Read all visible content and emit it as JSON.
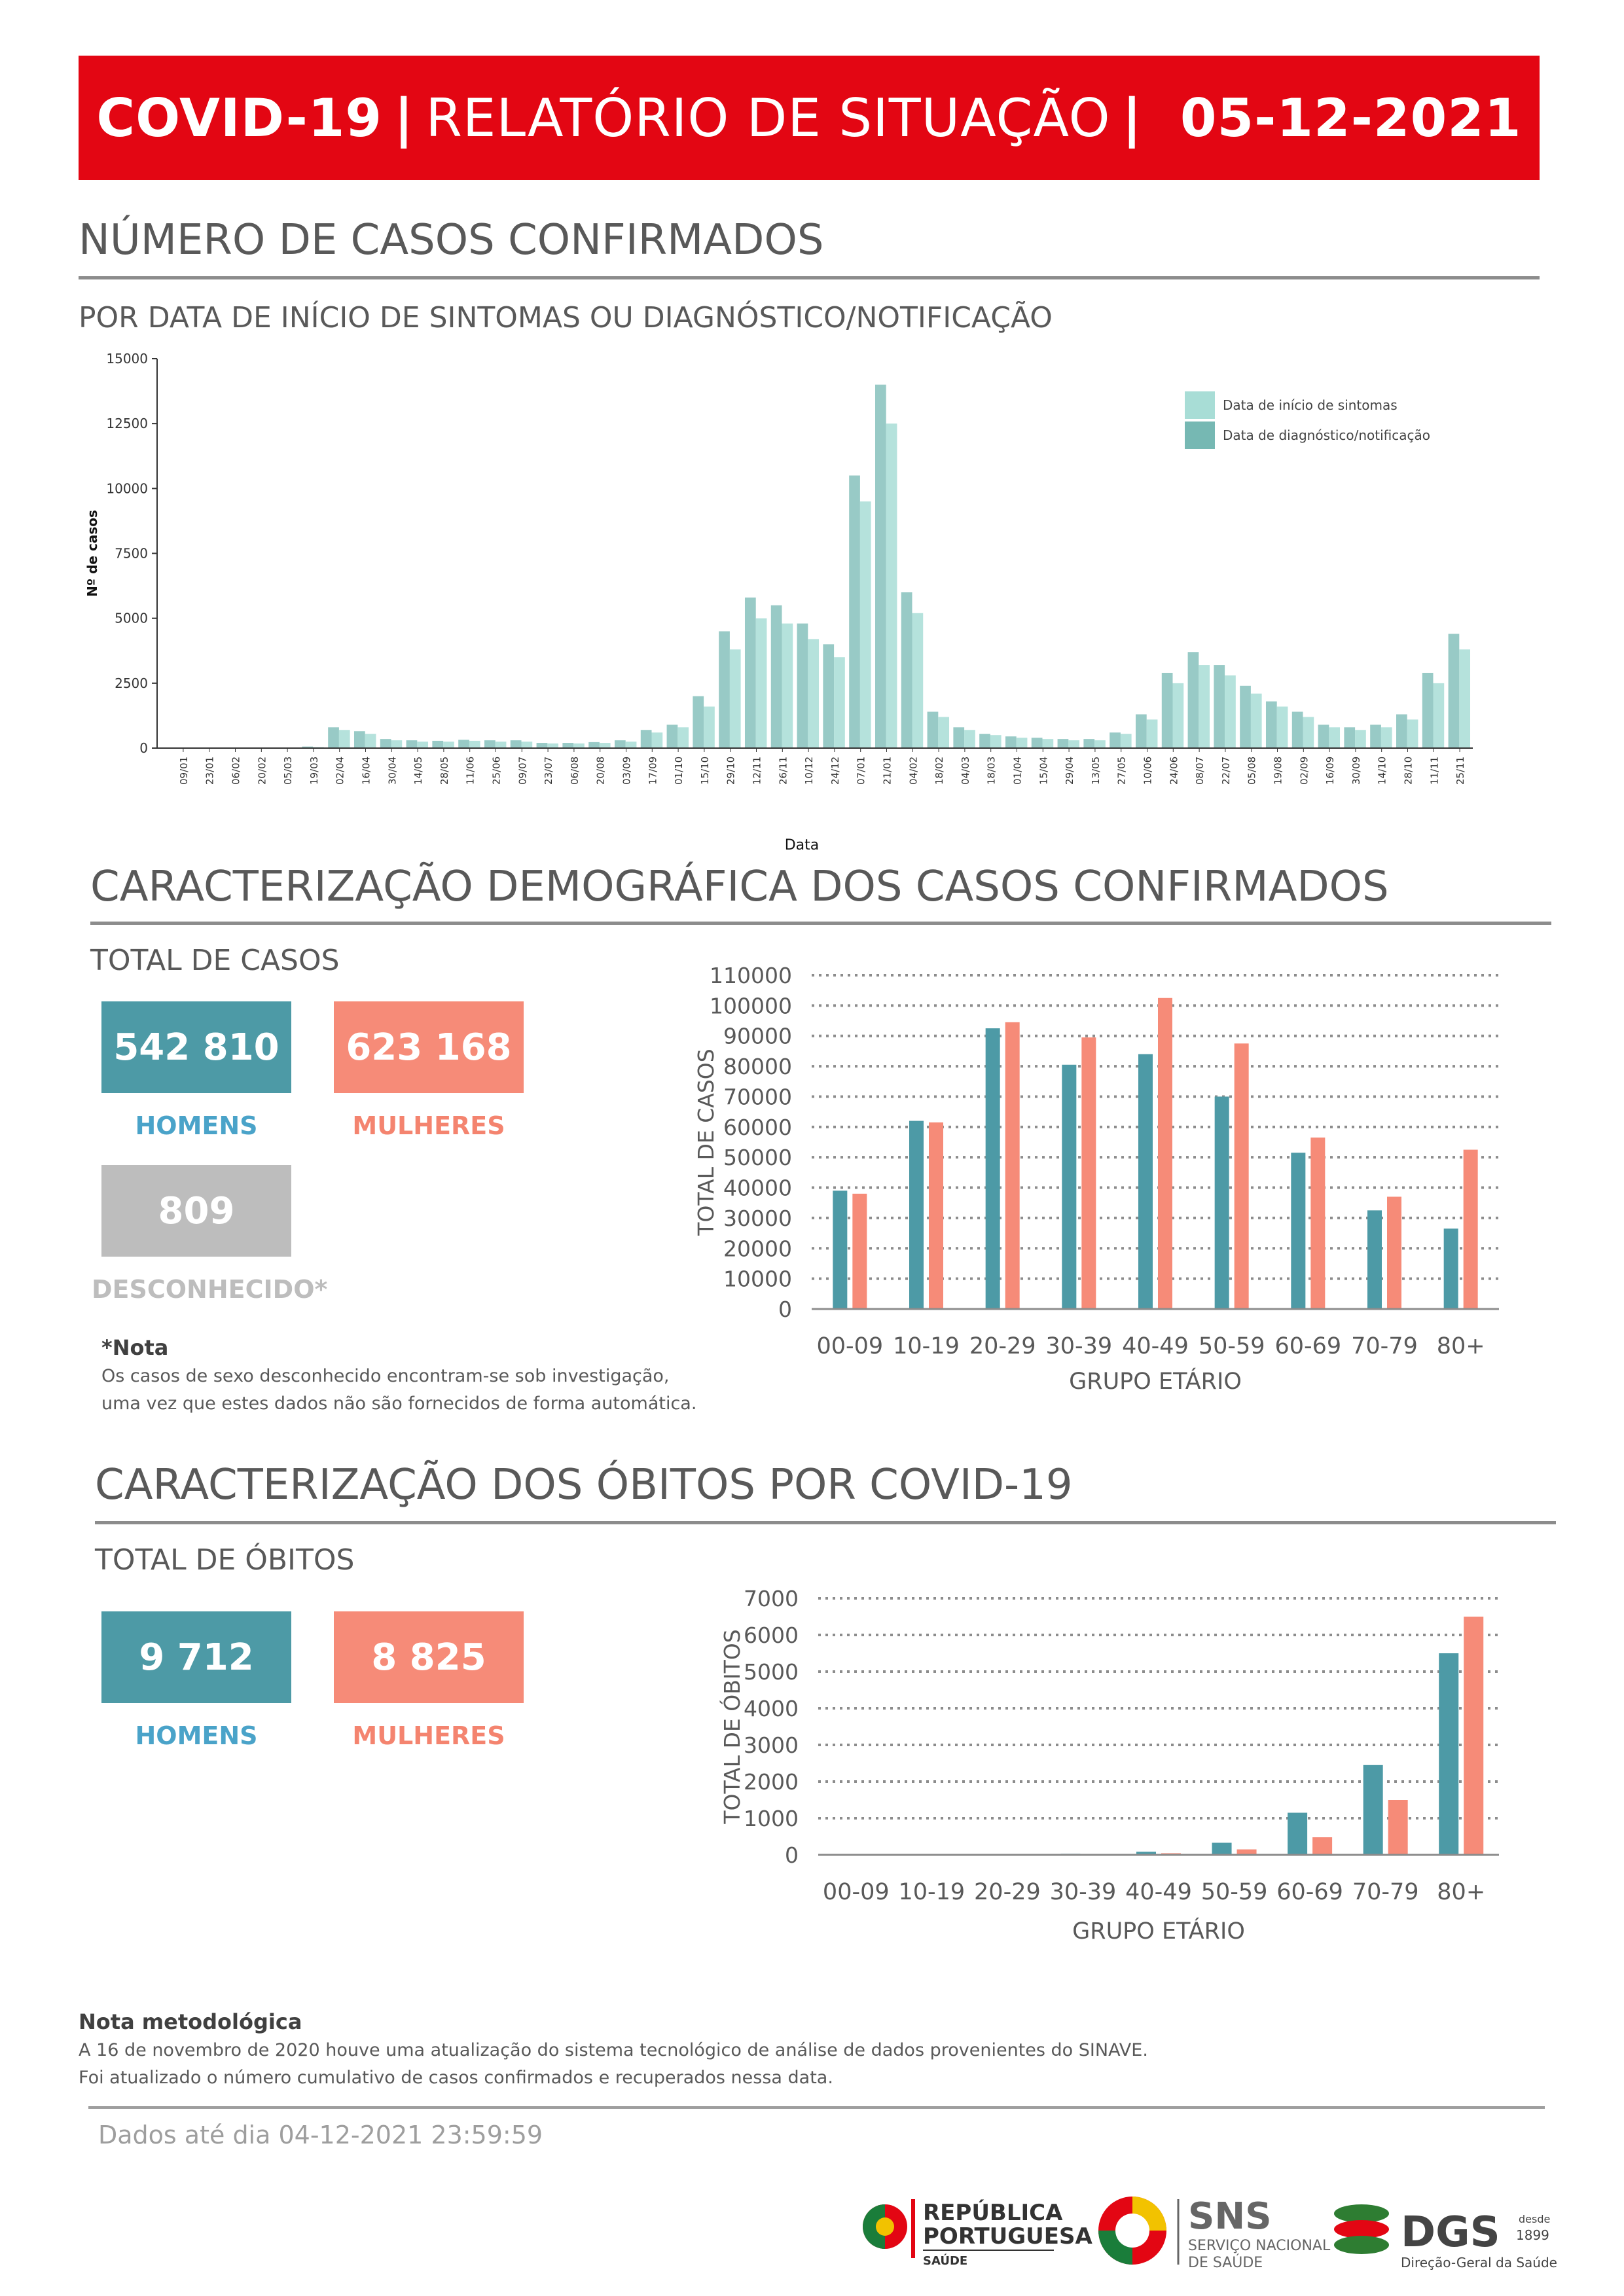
{
  "header": {
    "part1": "COVID-19",
    "bar1": "|",
    "part2": "RELATÓRIO DE SITUAÇÃO",
    "bar2": "|",
    "date": "05-12-2021",
    "bg_color": "#e30613"
  },
  "section_cases": {
    "title": "NÚMERO DE CASOS CONFIRMADOS",
    "subtitle": "POR DATA DE INÍCIO DE SINTOMAS OU DIAGNÓSTICO/NOTIFICAÇÃO"
  },
  "section_demo": {
    "title": "CARACTERIZAÇÃO DEMOGRÁFICA DOS CASOS CONFIRMADOS",
    "total_label": "TOTAL DE CASOS",
    "men_value": "542 810",
    "men_label": "HOMENS",
    "women_value": "623 168",
    "women_label": "MULHERES",
    "unknown_value": "809",
    "unknown_label": "DESCONHECIDO*",
    "note_title": "*Nota",
    "note_line1": "Os casos de sexo desconhecido encontram-se sob investigação,",
    "note_line2": "uma vez que estes dados não são fornecidos de forma automática."
  },
  "section_deaths": {
    "title": "CARACTERIZAÇÃO DOS ÓBITOS POR COVID-19",
    "total_label": "TOTAL DE ÓBITOS",
    "men_value": "9 712",
    "men_label": "HOMENS",
    "women_value": "8 825",
    "women_label": "MULHERES"
  },
  "methodology": {
    "title": "Nota metodológica",
    "line1": "A 16 de novembro de 2020 houve uma atualização do sistema tecnológico de análise de dados provenientes do SINAVE.",
    "line2": "Foi atualizado o número cumulativo de casos confirmados e recuperados nessa data."
  },
  "footer": {
    "data_until": "Dados até dia 04-12-2021 23:59:59",
    "logo_rp_line1": "REPÚBLICA",
    "logo_rp_line2": "PORTUGUESA",
    "logo_rp_line3": "SAÚDE",
    "logo_sns": "SNS",
    "logo_sns_line1": "SERVIÇO NACIONAL",
    "logo_sns_line2": "DE SAÚDE",
    "logo_dgs": "DGS",
    "logo_dgs_since1": "desde",
    "logo_dgs_since2": "1899",
    "logo_dgs_sub": "Direção-Geral da Saúde"
  },
  "chart_data": [
    {
      "type": "bar",
      "xlabel": "Data",
      "ylabel": "Nº de casos",
      "ylim": [
        0,
        15000
      ],
      "yticks": [
        0,
        2500,
        5000,
        7500,
        10000,
        12500,
        15000
      ],
      "x_tick_labels": [
        "09/01",
        "23/01",
        "06/02",
        "20/02",
        "05/03",
        "19/03",
        "02/04",
        "16/04",
        "30/04",
        "14/05",
        "28/05",
        "11/06",
        "25/06",
        "09/07",
        "23/07",
        "06/08",
        "20/08",
        "03/09",
        "17/09",
        "01/10",
        "15/10",
        "29/10",
        "12/11",
        "26/11",
        "10/12",
        "24/12",
        "07/01",
        "21/01",
        "04/02",
        "18/02",
        "04/03",
        "18/03",
        "01/04",
        "15/04",
        "29/04",
        "13/05",
        "27/05",
        "10/06",
        "24/06",
        "08/07",
        "22/07",
        "05/08",
        "19/08",
        "02/09",
        "16/09",
        "30/09",
        "14/10",
        "28/10",
        "11/11",
        "25/11"
      ],
      "legend_position": "top-right",
      "series": [
        {
          "name": "Data de início de sintomas",
          "color": "#a8ddd6",
          "values": [
            0,
            0,
            0,
            0,
            0,
            40,
            700,
            550,
            300,
            250,
            250,
            280,
            250,
            250,
            180,
            180,
            200,
            250,
            600,
            800,
            1600,
            3800,
            5000,
            4800,
            4200,
            3500,
            9500,
            12500,
            5200,
            1200,
            700,
            500,
            400,
            350,
            300,
            300,
            550,
            1100,
            2500,
            3200,
            2800,
            2100,
            1600,
            1200,
            800,
            700,
            800,
            1100,
            2500,
            3800
          ]
        },
        {
          "name": "Data de diagnóstico/notificação",
          "color": "#76b8b3",
          "values": [
            0,
            0,
            0,
            0,
            0,
            60,
            800,
            650,
            350,
            300,
            280,
            320,
            300,
            300,
            200,
            200,
            230,
            300,
            700,
            900,
            2000,
            4500,
            5800,
            5500,
            4800,
            4000,
            10500,
            14000,
            6000,
            1400,
            800,
            550,
            450,
            400,
            350,
            350,
            600,
            1300,
            2900,
            3700,
            3200,
            2400,
            1800,
            1400,
            900,
            800,
            900,
            1300,
            2900,
            4400
          ]
        }
      ]
    },
    {
      "type": "bar",
      "xlabel": "GRUPO ETÁRIO",
      "ylabel": "TOTAL DE CASOS",
      "categories": [
        "00-09",
        "10-19",
        "20-29",
        "30-39",
        "40-49",
        "50-59",
        "60-69",
        "70-79",
        "80+"
      ],
      "ylim": [
        0,
        110000
      ],
      "yticks": [
        0,
        10000,
        20000,
        30000,
        40000,
        50000,
        60000,
        70000,
        80000,
        90000,
        100000,
        110000
      ],
      "grid": true,
      "series": [
        {
          "label": "HOMENS",
          "color": "#4d9aa6",
          "values": [
            39000,
            62000,
            92500,
            80500,
            84000,
            70000,
            51500,
            32500,
            26500
          ]
        },
        {
          "label": "MULHERES",
          "color": "#f68b78",
          "values": [
            38000,
            61500,
            94500,
            89500,
            102500,
            87500,
            56500,
            37000,
            52500
          ]
        }
      ]
    },
    {
      "type": "bar",
      "xlabel": "GRUPO ETÁRIO",
      "ylabel": "TOTAL DE ÓBITOS",
      "categories": [
        "00-09",
        "10-19",
        "20-29",
        "30-39",
        "40-49",
        "50-59",
        "60-69",
        "70-79",
        "80+"
      ],
      "ylim": [
        0,
        7000
      ],
      "yticks": [
        0,
        1000,
        2000,
        3000,
        4000,
        5000,
        6000,
        7000
      ],
      "grid": true,
      "series": [
        {
          "label": "HOMENS",
          "color": "#4d9aa6",
          "values": [
            2,
            3,
            12,
            30,
            85,
            330,
            1150,
            2450,
            5500
          ]
        },
        {
          "label": "MULHERES",
          "color": "#f68b78",
          "values": [
            1,
            2,
            6,
            18,
            45,
            150,
            480,
            1500,
            6500
          ]
        }
      ]
    }
  ]
}
